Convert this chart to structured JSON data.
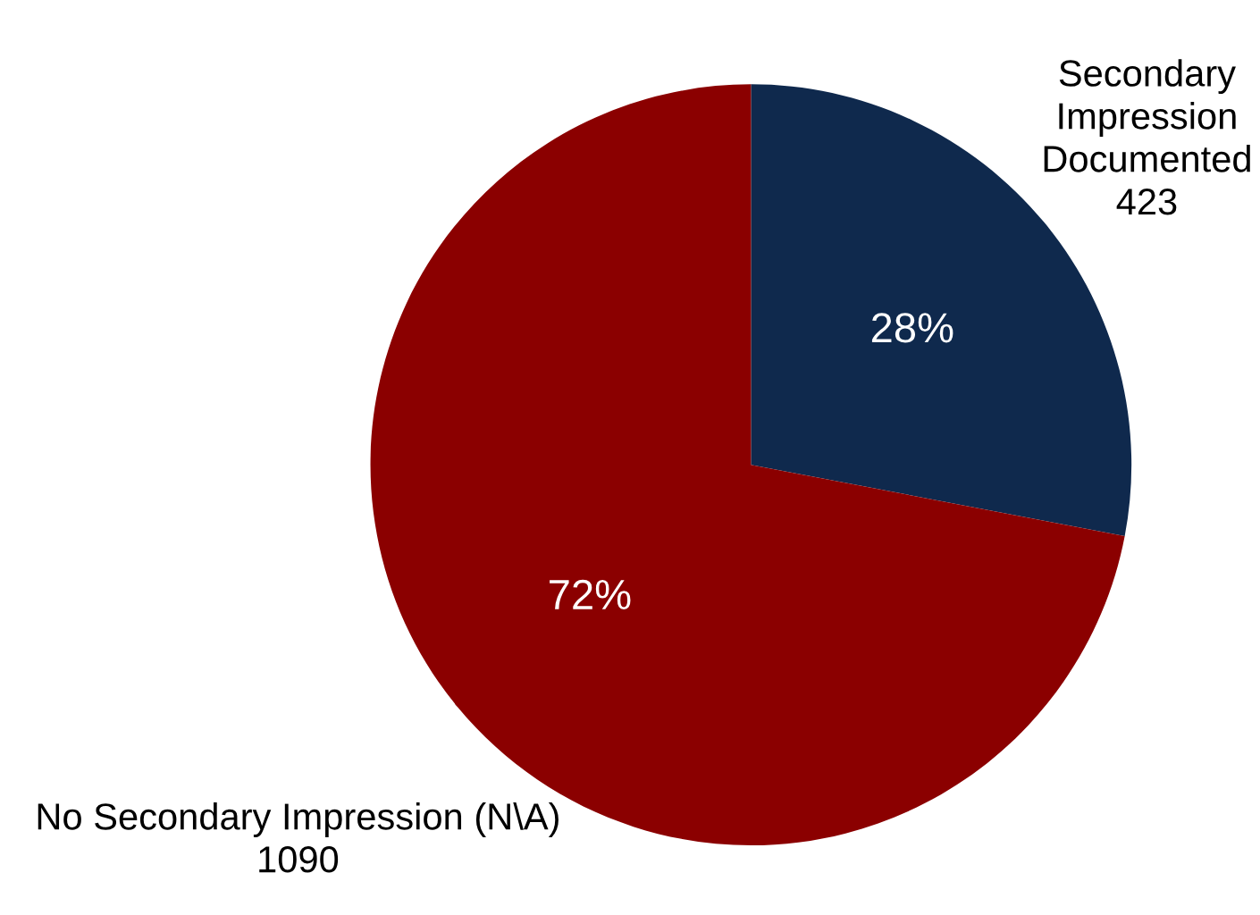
{
  "chart_data": {
    "type": "pie",
    "categories": [
      "Secondary\nImpression\nDocumented",
      "No Secondary Impression (N\\A)"
    ],
    "values": [
      28,
      72
    ],
    "colors": [
      "#0f294d",
      "#8b0000"
    ],
    "value_labels": [
      "28%",
      "72%"
    ],
    "annotations": [
      "423",
      "1090"
    ],
    "legend": false
  }
}
